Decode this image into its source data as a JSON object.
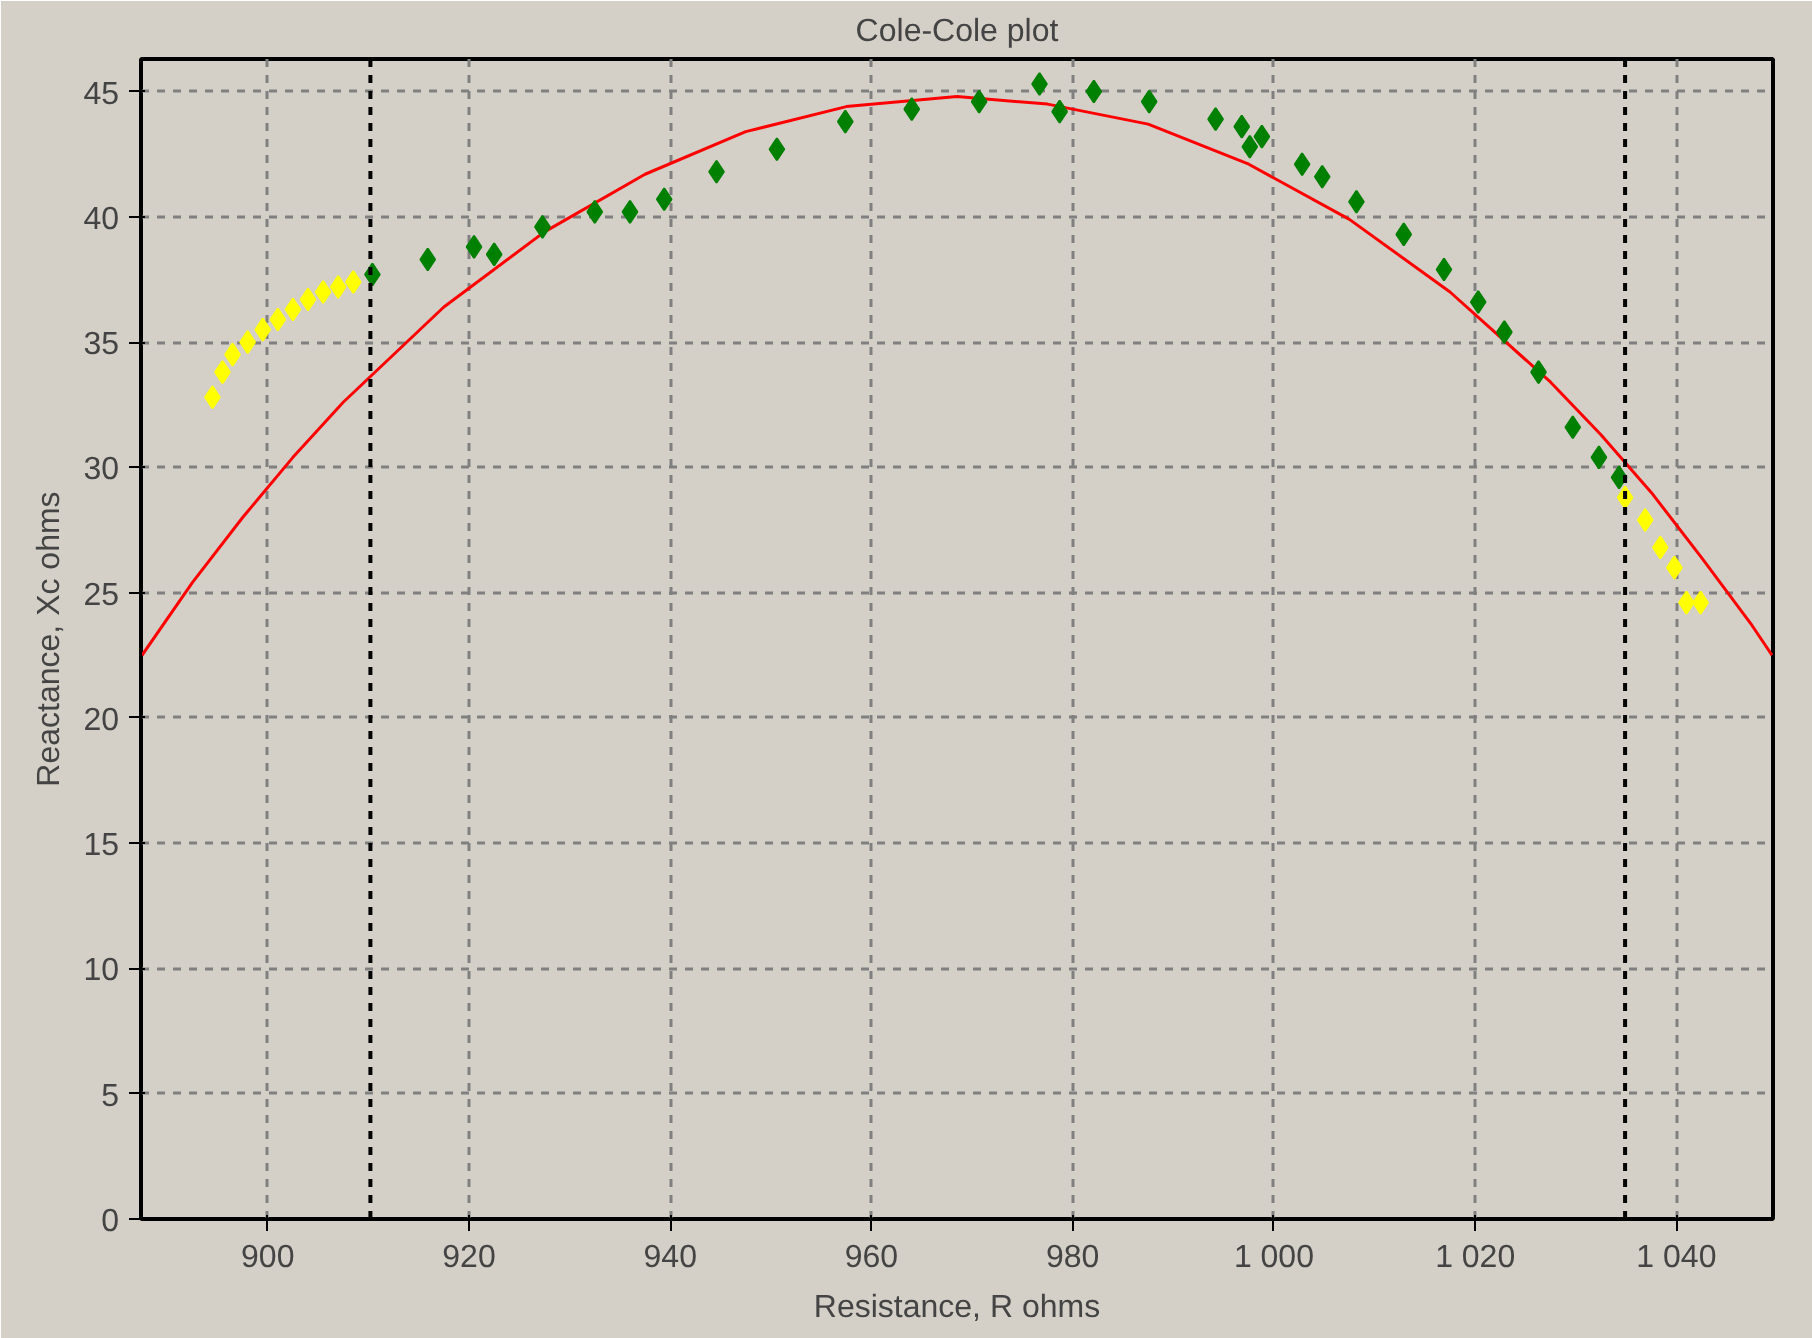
{
  "chart_data": {
    "type": "scatter",
    "title": "Cole-Cole plot",
    "xlabel": "Resistance, R ohms",
    "ylabel": "Reactance, Xc ohms",
    "xlim": [
      887.4,
      1049.6
    ],
    "ylim": [
      0,
      46.3
    ],
    "xticks": [
      900,
      920,
      940,
      960,
      980,
      {
        "value": 1000,
        "label": "1 000"
      },
      {
        "value": 1020,
        "label": "1 020"
      },
      {
        "value": 1040,
        "label": "1 040"
      }
    ],
    "yticks": [
      0,
      5,
      10,
      15,
      20,
      25,
      30,
      35,
      40,
      45
    ],
    "grid": true,
    "marker": "diamond",
    "series": [
      {
        "type": "line",
        "marker": "none",
        "color": "#ff0000",
        "x": [
          887.5,
          892.5,
          897.5,
          902.5,
          907.5,
          917.5,
          927.5,
          937.5,
          947.5,
          957.5,
          968.5,
          977.5,
          987.5,
          997.5,
          1007.5,
          1017.5,
          1027.5,
          1032.5,
          1037.5,
          1042.5,
          1047.5,
          1049.5
        ],
        "values": [
          22.5,
          25.4,
          28.0,
          30.4,
          32.6,
          36.4,
          39.4,
          41.7,
          43.4,
          44.4,
          44.8,
          44.5,
          43.7,
          42.1,
          39.9,
          37.0,
          33.4,
          31.3,
          29.0,
          26.4,
          23.7,
          22.5
        ]
      },
      {
        "color": "#ffff00",
        "x": [
          894.5,
          895.5,
          896.5,
          898,
          899.5,
          901,
          902.5,
          904,
          905.5,
          907,
          908.5
        ],
        "values": [
          32.8,
          33.8,
          34.5,
          35.0,
          35.5,
          35.9,
          36.3,
          36.7,
          37.0,
          37.2,
          37.4
        ]
      },
      {
        "color": "#008000",
        "x": [
          910.4,
          915.9,
          920.5,
          922.5,
          927.3,
          932.5,
          936,
          939.4,
          944.6,
          950.6,
          957.4,
          964,
          970.7,
          976.7,
          978.7,
          982.1,
          987.6,
          994.2,
          996.8,
          997.6,
          998.8,
          1002.8,
          1004.8,
          1008.2,
          1012.9,
          1016.9,
          1020.3,
          1022.9,
          1026.3,
          1029.7,
          1032.3,
          1034.3
        ],
        "values": [
          37.7,
          38.3,
          38.8,
          38.5,
          39.6,
          40.2,
          40.2,
          40.7,
          41.8,
          42.7,
          43.8,
          44.3,
          44.6,
          45.3,
          44.2,
          45.0,
          44.6,
          43.9,
          43.6,
          42.8,
          43.2,
          42.1,
          41.6,
          40.6,
          39.3,
          37.9,
          36.6,
          35.4,
          33.8,
          31.6,
          30.4,
          29.6
        ]
      },
      {
        "color": "#ffff00",
        "x": [
          1034.9,
          1036.9,
          1038.4,
          1039.8,
          1041.0,
          1042.4
        ],
        "values": [
          28.8,
          27.9,
          26.8,
          26.0,
          24.6,
          24.6
        ]
      }
    ],
    "ref_lines": [
      {
        "axis": "x",
        "value": 910.2,
        "color": "#000000",
        "line_style": "dashed"
      },
      {
        "axis": "x",
        "value": 1034.9,
        "color": "#000000",
        "line_style": "dashed"
      }
    ]
  }
}
